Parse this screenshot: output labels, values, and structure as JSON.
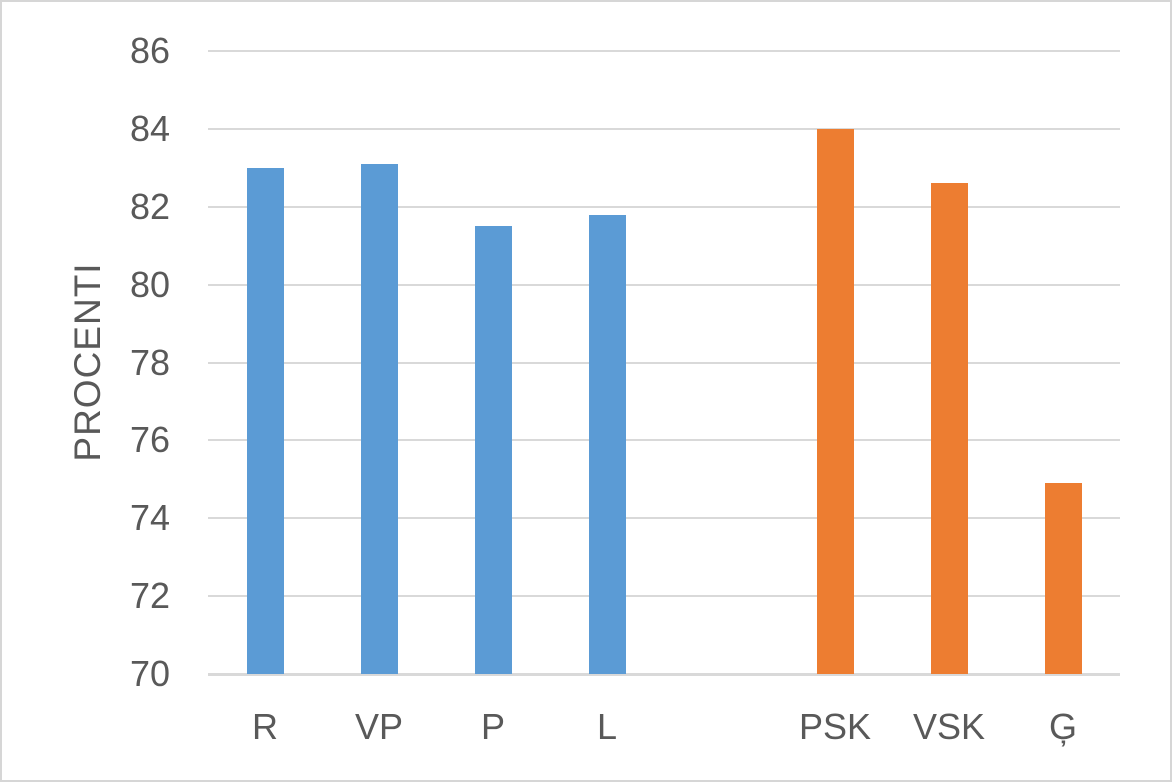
{
  "chart_data": {
    "type": "bar",
    "title": "",
    "xlabel": "",
    "ylabel": "PROCENTI",
    "ylim": [
      70,
      86
    ],
    "yticks": [
      70,
      72,
      74,
      76,
      78,
      80,
      82,
      84,
      86
    ],
    "grid": true,
    "legend": "none",
    "categories": [
      "R",
      "VP",
      "P",
      "L",
      "",
      "PSK",
      "VSK",
      "Ģ"
    ],
    "values": [
      83.0,
      83.1,
      81.5,
      81.8,
      null,
      84.0,
      82.6,
      74.9
    ],
    "bar_colors": [
      "#5B9BD5",
      "#5B9BD5",
      "#5B9BD5",
      "#5B9BD5",
      null,
      "#ED7D31",
      "#ED7D31",
      "#ED7D31"
    ]
  },
  "colors": {
    "series_blue": "#5B9BD5",
    "series_orange": "#ED7D31",
    "gridline": "#D9D9D9",
    "text": "#595959",
    "frame_border": "#D6D6D6"
  }
}
